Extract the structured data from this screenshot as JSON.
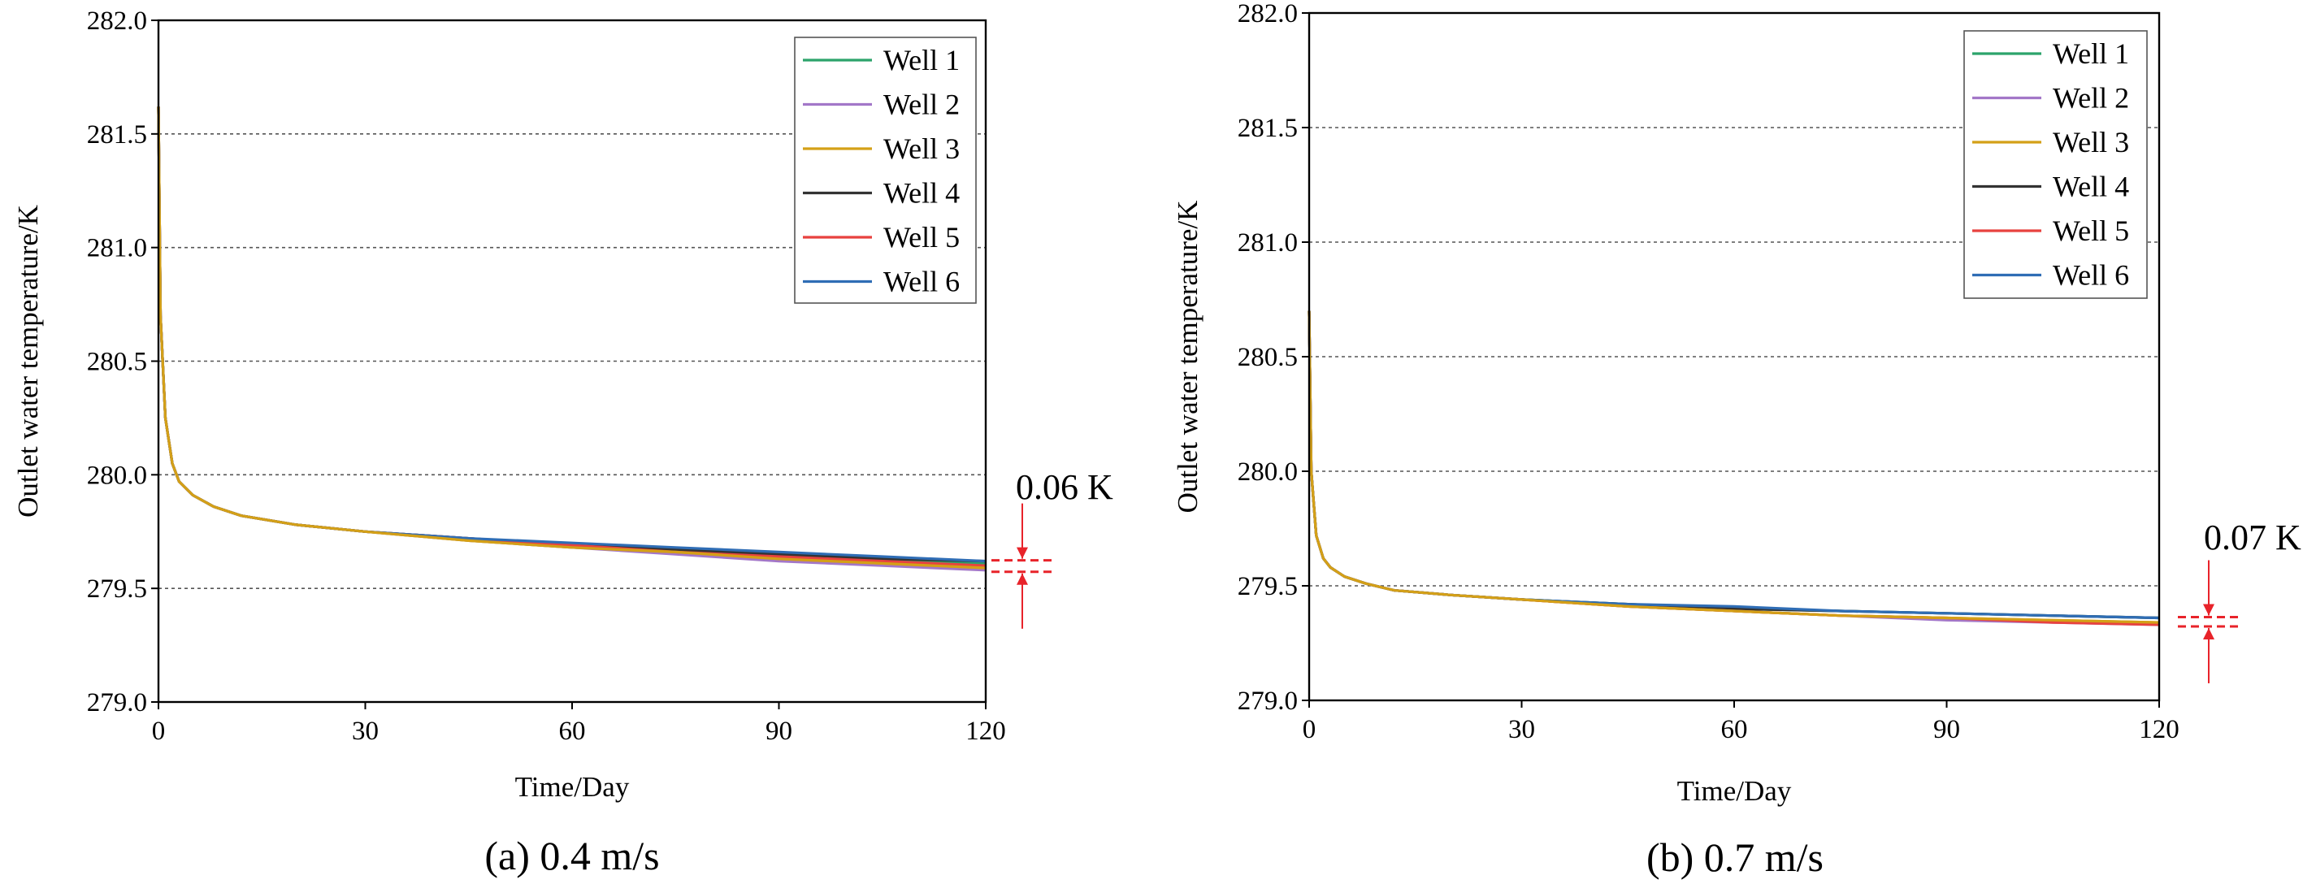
{
  "chart_data": [
    {
      "type": "line",
      "caption": "(a) 0.4 m/s",
      "xlabel": "Time/Day",
      "ylabel": "Outlet water temperature/K",
      "xlim": [
        0,
        120
      ],
      "ylim": [
        279.0,
        282.0
      ],
      "xticks": [
        "0",
        "30",
        "60",
        "90",
        "120"
      ],
      "yticks": [
        "279.0",
        "279.5",
        "280.0",
        "280.5",
        "281.0",
        "281.5",
        "282.0"
      ],
      "grid": "horizontal dashed",
      "legend_position": "top-right",
      "annotation": "0.06 K",
      "series": [
        {
          "name": "Well 1",
          "color": "#2ca36b",
          "x": [
            0,
            0.3,
            1,
            2,
            3,
            5,
            8,
            12,
            20,
            30,
            45,
            60,
            75,
            90,
            105,
            120
          ],
          "y": [
            281.62,
            280.7,
            280.25,
            280.05,
            279.97,
            279.91,
            279.86,
            279.82,
            279.78,
            279.75,
            279.72,
            279.69,
            279.67,
            279.65,
            279.63,
            279.61
          ]
        },
        {
          "name": "Well 2",
          "color": "#a377c8",
          "x": [
            0,
            0.3,
            1,
            2,
            3,
            5,
            8,
            12,
            20,
            30,
            45,
            60,
            75,
            90,
            105,
            120
          ],
          "y": [
            281.62,
            280.7,
            280.25,
            280.05,
            279.97,
            279.91,
            279.86,
            279.82,
            279.78,
            279.75,
            279.71,
            279.68,
            279.65,
            279.62,
            279.6,
            279.58
          ]
        },
        {
          "name": "Well 3",
          "color": "#d4a017",
          "x": [
            0,
            0.3,
            1,
            2,
            3,
            5,
            8,
            12,
            20,
            30,
            45,
            60,
            75,
            90,
            105,
            120
          ],
          "y": [
            281.62,
            280.7,
            280.25,
            280.05,
            279.97,
            279.91,
            279.86,
            279.82,
            279.78,
            279.75,
            279.71,
            279.68,
            279.66,
            279.63,
            279.61,
            279.59
          ]
        },
        {
          "name": "Well 4",
          "color": "#333333",
          "x": [
            0,
            0.3,
            1,
            2,
            3,
            5,
            8,
            12,
            20,
            30,
            45,
            60,
            75,
            90,
            105,
            120
          ],
          "y": [
            281.62,
            280.7,
            280.25,
            280.05,
            279.97,
            279.91,
            279.86,
            279.82,
            279.78,
            279.75,
            279.72,
            279.69,
            279.67,
            279.65,
            279.63,
            279.62
          ]
        },
        {
          "name": "Well 5",
          "color": "#e8423f",
          "x": [
            0,
            0.3,
            1,
            2,
            3,
            5,
            8,
            12,
            20,
            30,
            45,
            60,
            75,
            90,
            105,
            120
          ],
          "y": [
            281.62,
            280.7,
            280.25,
            280.05,
            279.97,
            279.91,
            279.86,
            279.82,
            279.78,
            279.75,
            279.72,
            279.69,
            279.66,
            279.64,
            279.62,
            279.6
          ]
        },
        {
          "name": "Well 6",
          "color": "#2f6db5",
          "x": [
            0,
            0.3,
            1,
            2,
            3,
            5,
            8,
            12,
            20,
            30,
            45,
            60,
            75,
            90,
            105,
            120
          ],
          "y": [
            281.62,
            280.7,
            280.25,
            280.05,
            279.97,
            279.91,
            279.86,
            279.82,
            279.78,
            279.75,
            279.72,
            279.7,
            279.68,
            279.66,
            279.64,
            279.62
          ]
        }
      ]
    },
    {
      "type": "line",
      "caption": "(b) 0.7 m/s",
      "xlabel": "Time/Day",
      "ylabel": "Outlet water temperature/K",
      "xlim": [
        0,
        120
      ],
      "ylim": [
        279.0,
        282.0
      ],
      "xticks": [
        "0",
        "30",
        "60",
        "90",
        "120"
      ],
      "yticks": [
        "279.0",
        "279.5",
        "280.0",
        "280.5",
        "281.0",
        "281.5",
        "282.0"
      ],
      "grid": "horizontal dashed",
      "legend_position": "top-right",
      "annotation": "0.07 K",
      "series": [
        {
          "name": "Well 1",
          "color": "#2ca36b",
          "x": [
            0,
            0.3,
            1,
            2,
            3,
            5,
            8,
            12,
            20,
            30,
            45,
            60,
            75,
            90,
            105,
            120
          ],
          "y": [
            280.7,
            280.0,
            279.72,
            279.62,
            279.58,
            279.54,
            279.51,
            279.48,
            279.46,
            279.44,
            279.42,
            279.4,
            279.39,
            279.38,
            279.37,
            279.36
          ]
        },
        {
          "name": "Well 2",
          "color": "#a377c8",
          "x": [
            0,
            0.3,
            1,
            2,
            3,
            5,
            8,
            12,
            20,
            30,
            45,
            60,
            75,
            90,
            105,
            120
          ],
          "y": [
            280.7,
            280.0,
            279.72,
            279.62,
            279.58,
            279.54,
            279.51,
            279.48,
            279.46,
            279.44,
            279.41,
            279.39,
            279.37,
            279.35,
            279.34,
            279.33
          ]
        },
        {
          "name": "Well 3",
          "color": "#d4a017",
          "x": [
            0,
            0.3,
            1,
            2,
            3,
            5,
            8,
            12,
            20,
            30,
            45,
            60,
            75,
            90,
            105,
            120
          ],
          "y": [
            280.7,
            280.0,
            279.72,
            279.62,
            279.58,
            279.54,
            279.51,
            279.48,
            279.46,
            279.44,
            279.41,
            279.39,
            279.37,
            279.36,
            279.35,
            279.34
          ]
        },
        {
          "name": "Well 4",
          "color": "#333333",
          "x": [
            0,
            0.3,
            1,
            2,
            3,
            5,
            8,
            12,
            20,
            30,
            45,
            60,
            75,
            90,
            105,
            120
          ],
          "y": [
            280.7,
            280.0,
            279.72,
            279.62,
            279.58,
            279.54,
            279.51,
            279.48,
            279.46,
            279.44,
            279.42,
            279.4,
            279.39,
            279.38,
            279.37,
            279.36
          ]
        },
        {
          "name": "Well 5",
          "color": "#e8423f",
          "x": [
            0,
            0.3,
            1,
            2,
            3,
            5,
            8,
            12,
            20,
            30,
            45,
            60,
            75,
            90,
            105,
            120
          ],
          "y": [
            280.7,
            280.0,
            279.72,
            279.62,
            279.58,
            279.54,
            279.51,
            279.48,
            279.46,
            279.44,
            279.41,
            279.39,
            279.37,
            279.36,
            279.34,
            279.33
          ]
        },
        {
          "name": "Well 6",
          "color": "#2f6db5",
          "x": [
            0,
            0.3,
            1,
            2,
            3,
            5,
            8,
            12,
            20,
            30,
            45,
            60,
            75,
            90,
            105,
            120
          ],
          "y": [
            280.7,
            280.0,
            279.72,
            279.62,
            279.58,
            279.54,
            279.51,
            279.48,
            279.46,
            279.44,
            279.42,
            279.41,
            279.39,
            279.38,
            279.37,
            279.36
          ]
        }
      ]
    }
  ]
}
